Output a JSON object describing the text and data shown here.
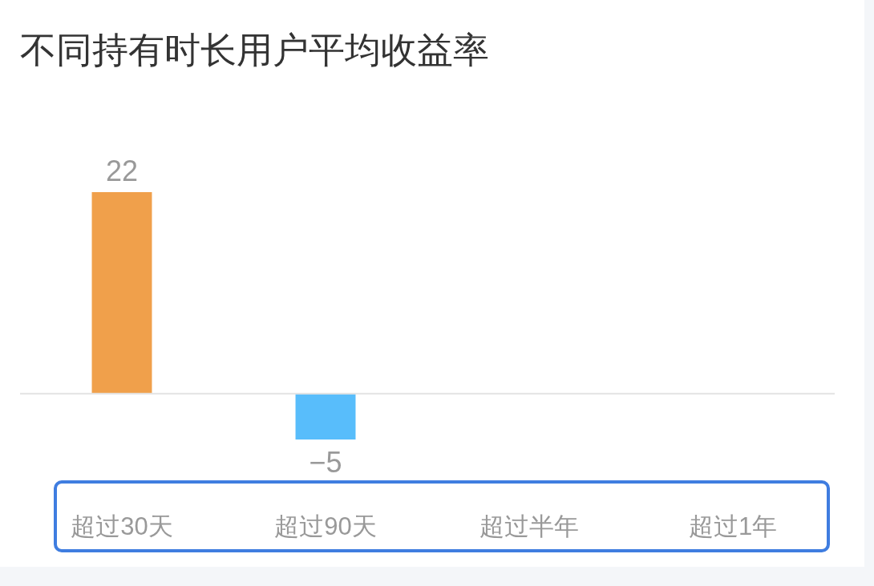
{
  "chart_data": {
    "type": "bar",
    "title": "不同持有时长用户平均收益率",
    "categories": [
      "超过30天",
      "超过90天",
      "超过半年",
      "超过1年"
    ],
    "values": [
      22,
      -5,
      null,
      null
    ],
    "colors": [
      "#f0a04b",
      "#58bdfb",
      null,
      null
    ],
    "data_labels": true
  }
}
